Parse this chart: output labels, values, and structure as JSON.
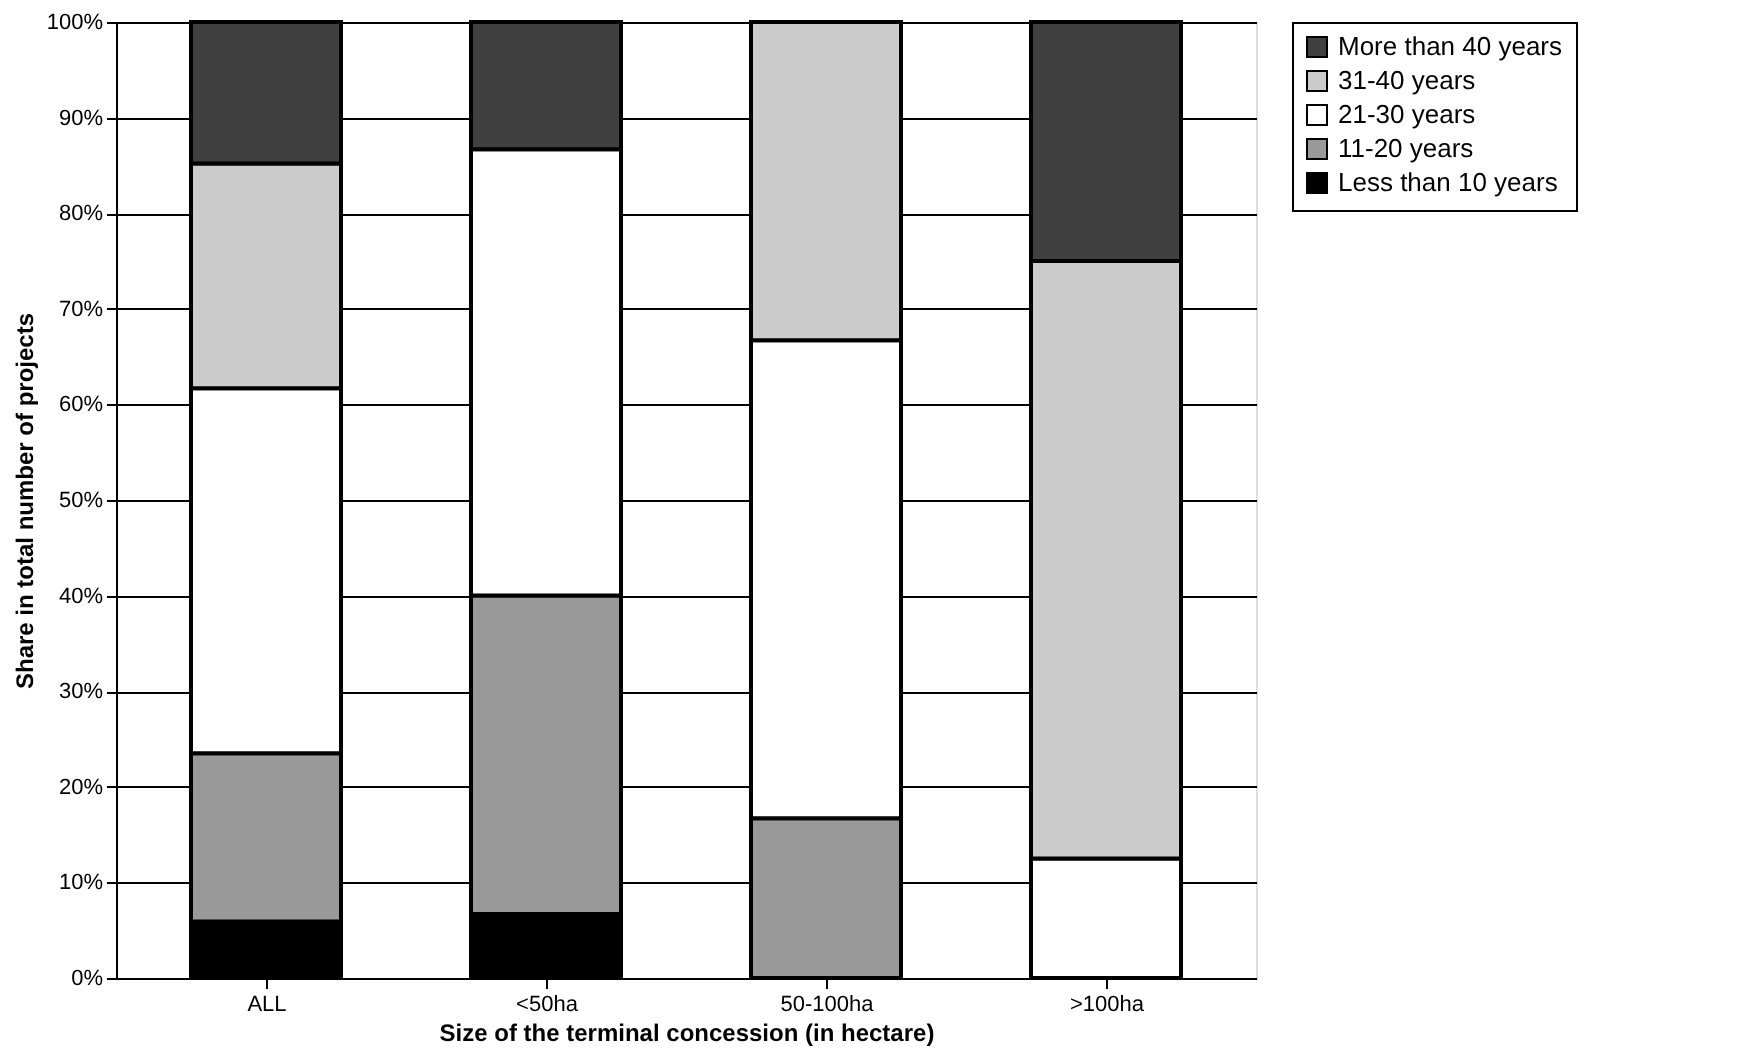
{
  "chart_data": {
    "type": "bar",
    "stacked": true,
    "xlabel": "Size of the terminal concession (in hectare)",
    "ylabel": "Share in total number of projects",
    "categories": [
      "ALL",
      "<50ha",
      "50-100ha",
      ">100ha"
    ],
    "series": [
      {
        "name": "Less than 10 years",
        "color": "#000000",
        "values": [
          5.9,
          6.7,
          0,
          0
        ]
      },
      {
        "name": "11-20 years",
        "color": "#999999",
        "values": [
          17.6,
          33.3,
          16.7,
          0
        ]
      },
      {
        "name": "21-30 years",
        "color": "#ffffff",
        "values": [
          38.2,
          46.7,
          50,
          12.5
        ]
      },
      {
        "name": "31-40 years",
        "color": "#cccccc",
        "values": [
          23.5,
          0,
          33.3,
          62.5
        ]
      },
      {
        "name": "More than 40 years",
        "color": "#404040",
        "values": [
          14.8,
          13.3,
          0,
          25
        ]
      }
    ],
    "ylim": [
      0,
      100
    ],
    "yticks": [
      {
        "value": 0,
        "label": "0%"
      },
      {
        "value": 10,
        "label": "10%"
      },
      {
        "value": 20,
        "label": "20%"
      },
      {
        "value": 30,
        "label": "30%"
      },
      {
        "value": 40,
        "label": "40%"
      },
      {
        "value": 50,
        "label": "50%"
      },
      {
        "value": 60,
        "label": "60%"
      },
      {
        "value": 70,
        "label": "70%"
      },
      {
        "value": 80,
        "label": "80%"
      },
      {
        "value": 90,
        "label": "90%"
      },
      {
        "value": 100,
        "label": "100%"
      }
    ],
    "grid": "y",
    "legend": "right"
  }
}
